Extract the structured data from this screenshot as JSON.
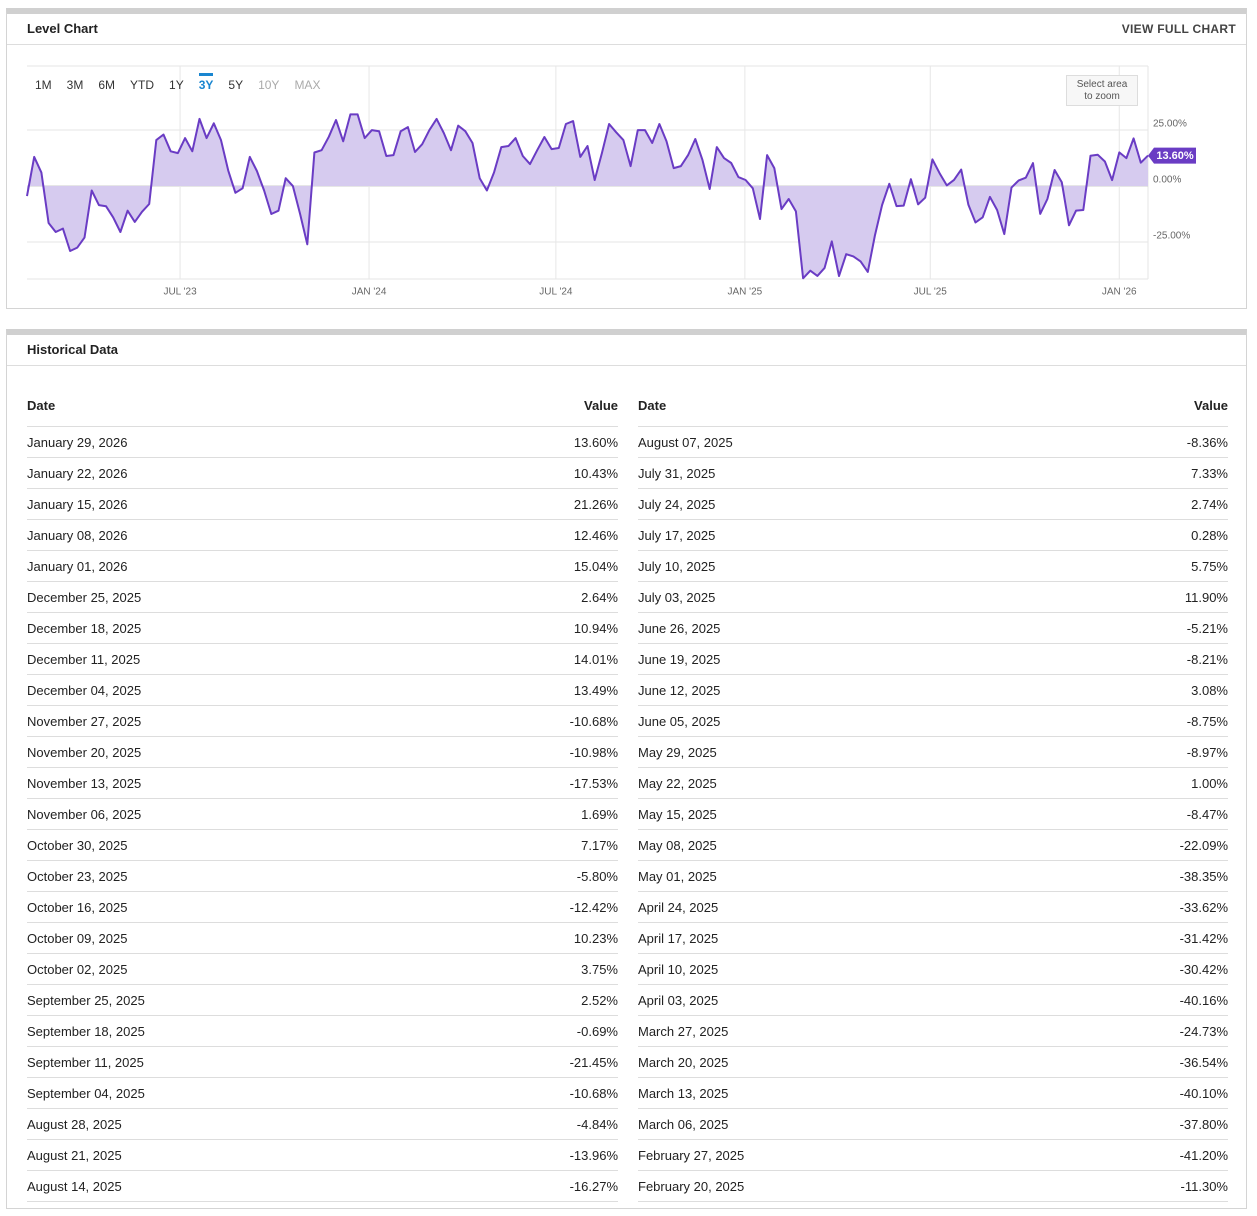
{
  "chart_panel": {
    "title": "Level Chart",
    "link": "VIEW FULL CHART",
    "ranges": [
      {
        "label": "1M",
        "state": "enabled"
      },
      {
        "label": "3M",
        "state": "enabled"
      },
      {
        "label": "6M",
        "state": "enabled"
      },
      {
        "label": "YTD",
        "state": "enabled"
      },
      {
        "label": "1Y",
        "state": "enabled"
      },
      {
        "label": "3Y",
        "state": "active"
      },
      {
        "label": "5Y",
        "state": "enabled"
      },
      {
        "label": "10Y",
        "state": "disabled"
      },
      {
        "label": "MAX",
        "state": "disabled"
      }
    ],
    "zoom_hint": "Select area to zoom"
  },
  "chart_data": {
    "type": "area",
    "color": "#6a3cc4",
    "fill_color": "#d6cbef",
    "grid": true,
    "values": [
      -4.5,
      13,
      6,
      -16.5,
      -20.5,
      -19,
      -29,
      -27.5,
      -23,
      -2,
      -8.5,
      -9,
      -14,
      -20.5,
      -11,
      -16,
      -11.5,
      -8,
      20.5,
      23,
      15.5,
      14.7,
      21.4,
      15.5,
      30,
      21.4,
      28,
      20.5,
      7,
      -3,
      -1,
      13,
      6.7,
      -2,
      -12.5,
      -11,
      3.5,
      0,
      -12.5,
      -26,
      15,
      16,
      22,
      29.5,
      20,
      32,
      32,
      21.4,
      25,
      24.5,
      13.4,
      13.8,
      24.5,
      26.3,
      15.2,
      18.7,
      25,
      30,
      23.7,
      16,
      27,
      24.5,
      19.2,
      3.5,
      -2,
      6.2,
      17.4,
      17.9,
      21.4,
      13.4,
      9.8,
      16,
      21.9,
      16.5,
      17,
      27.7,
      29,
      13,
      17.9,
      2.7,
      14.7,
      27.7,
      24,
      20.5,
      8.9,
      25,
      25,
      19.2,
      27.7,
      20,
      8,
      8.9,
      13.8,
      21,
      11.6,
      -1.3,
      17.4,
      12.5,
      10.3,
      4,
      2.7,
      -1,
      -14.7,
      13.8,
      8,
      -10.3,
      -5.8,
      -11.3,
      -41.2,
      -37.8,
      -40.1,
      -36.54,
      -24.73,
      -40.16,
      -30.42,
      -31.42,
      -33.62,
      -38.35,
      -22.09,
      -8.47,
      1.0,
      -8.97,
      -8.75,
      3.08,
      -8.21,
      -5.21,
      11.9,
      5.75,
      0.28,
      2.74,
      7.33,
      -8.36,
      -16.27,
      -13.96,
      -4.84,
      -10.68,
      -21.45,
      -0.69,
      2.52,
      3.75,
      10.23,
      -12.42,
      -5.8,
      7.17,
      1.69,
      -17.53,
      -10.98,
      -10.68,
      13.49,
      14.01,
      10.94,
      2.64,
      15.04,
      12.46,
      21.26,
      10.43,
      13.6
    ],
    "last_value_label": "13.60%",
    "xlim": [
      0,
      156
    ],
    "xticks": [
      {
        "value": 21.3,
        "label": "JUL '23"
      },
      {
        "value": 47.6,
        "label": "JAN '24"
      },
      {
        "value": 73.6,
        "label": "JUL '24"
      },
      {
        "value": 99.9,
        "label": "JAN '25"
      },
      {
        "value": 125.7,
        "label": "JUL '25"
      },
      {
        "value": 152,
        "label": "JAN '26"
      }
    ],
    "ylim": [
      -41.5,
      53.6
    ],
    "yticks": [
      {
        "value": 25,
        "label": "25.00%"
      },
      {
        "value": 0,
        "label": "0.00%"
      },
      {
        "value": -25,
        "label": "-25.00%"
      }
    ]
  },
  "historical": {
    "title": "Historical Data",
    "columns": [
      "Date",
      "Value"
    ],
    "tables": [
      {
        "rows": [
          [
            "January 29, 2026",
            "13.60%"
          ],
          [
            "January 22, 2026",
            "10.43%"
          ],
          [
            "January 15, 2026",
            "21.26%"
          ],
          [
            "January 08, 2026",
            "12.46%"
          ],
          [
            "January 01, 2026",
            "15.04%"
          ],
          [
            "December 25, 2025",
            "2.64%"
          ],
          [
            "December 18, 2025",
            "10.94%"
          ],
          [
            "December 11, 2025",
            "14.01%"
          ],
          [
            "December 04, 2025",
            "13.49%"
          ],
          [
            "November 27, 2025",
            "-10.68%"
          ],
          [
            "November 20, 2025",
            "-10.98%"
          ],
          [
            "November 13, 2025",
            "-17.53%"
          ],
          [
            "November 06, 2025",
            "1.69%"
          ],
          [
            "October 30, 2025",
            "7.17%"
          ],
          [
            "October 23, 2025",
            "-5.80%"
          ],
          [
            "October 16, 2025",
            "-12.42%"
          ],
          [
            "October 09, 2025",
            "10.23%"
          ],
          [
            "October 02, 2025",
            "3.75%"
          ],
          [
            "September 25, 2025",
            "2.52%"
          ],
          [
            "September 18, 2025",
            "-0.69%"
          ],
          [
            "September 11, 2025",
            "-21.45%"
          ],
          [
            "September 04, 2025",
            "-10.68%"
          ],
          [
            "August 28, 2025",
            "-4.84%"
          ],
          [
            "August 21, 2025",
            "-13.96%"
          ],
          [
            "August 14, 2025",
            "-16.27%"
          ]
        ]
      },
      {
        "rows": [
          [
            "August 07, 2025",
            "-8.36%"
          ],
          [
            "July 31, 2025",
            "7.33%"
          ],
          [
            "July 24, 2025",
            "2.74%"
          ],
          [
            "July 17, 2025",
            "0.28%"
          ],
          [
            "July 10, 2025",
            "5.75%"
          ],
          [
            "July 03, 2025",
            "11.90%"
          ],
          [
            "June 26, 2025",
            "-5.21%"
          ],
          [
            "June 19, 2025",
            "-8.21%"
          ],
          [
            "June 12, 2025",
            "3.08%"
          ],
          [
            "June 05, 2025",
            "-8.75%"
          ],
          [
            "May 29, 2025",
            "-8.97%"
          ],
          [
            "May 22, 2025",
            "1.00%"
          ],
          [
            "May 15, 2025",
            "-8.47%"
          ],
          [
            "May 08, 2025",
            "-22.09%"
          ],
          [
            "May 01, 2025",
            "-38.35%"
          ],
          [
            "April 24, 2025",
            "-33.62%"
          ],
          [
            "April 17, 2025",
            "-31.42%"
          ],
          [
            "April 10, 2025",
            "-30.42%"
          ],
          [
            "April 03, 2025",
            "-40.16%"
          ],
          [
            "March 27, 2025",
            "-24.73%"
          ],
          [
            "March 20, 2025",
            "-36.54%"
          ],
          [
            "March 13, 2025",
            "-40.10%"
          ],
          [
            "March 06, 2025",
            "-37.80%"
          ],
          [
            "February 27, 2025",
            "-41.20%"
          ],
          [
            "February 20, 2025",
            "-11.30%"
          ]
        ]
      }
    ]
  }
}
